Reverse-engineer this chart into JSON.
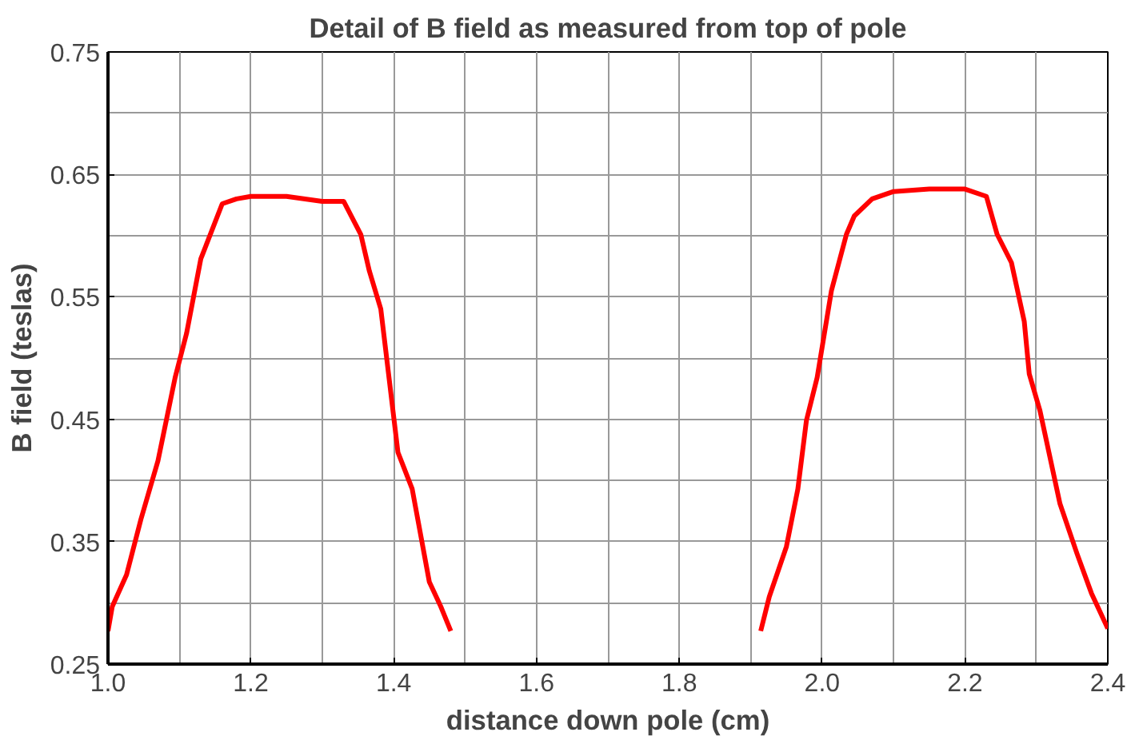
{
  "chart_data": {
    "type": "line",
    "title": "Detail of B field as measured from top of pole",
    "xlabel": "distance down pole (cm)",
    "ylabel": "B field (teslas)",
    "xlim": [
      1.0,
      2.4
    ],
    "xticks": [
      {
        "value": 1,
        "label": "1.0"
      },
      1.2,
      1.4,
      1.6,
      1.8,
      {
        "value": 2,
        "label": "2.0"
      },
      2.2,
      2.4
    ],
    "ylim": [
      0.25,
      0.75
    ],
    "yticks": [
      0.25,
      0.35,
      0.45,
      0.55,
      0.65,
      0.75
    ],
    "grid": true,
    "marker": "none",
    "line_style": "solid",
    "series": [
      {
        "color": "#ff0000",
        "x": [
          1.0,
          1.006,
          1.026,
          1.046,
          1.07,
          1.094,
          1.11,
          1.13,
          1.146,
          1.16,
          1.18,
          1.2,
          1.25,
          1.3,
          1.33,
          1.354,
          1.366,
          1.382,
          1.406,
          1.426,
          1.45,
          1.466,
          1.48
        ],
        "values": [
          0.277,
          0.297,
          0.323,
          0.368,
          0.416,
          0.484,
          0.52,
          0.581,
          0.605,
          0.626,
          0.63,
          0.632,
          0.632,
          0.628,
          0.628,
          0.601,
          0.571,
          0.54,
          0.423,
          0.393,
          0.317,
          0.297,
          0.277
        ]
      },
      {
        "color": "#ff0000",
        "x": [
          1.914,
          1.926,
          1.95,
          1.966,
          1.978,
          1.993,
          2.013,
          2.034,
          2.045,
          2.07,
          2.1,
          2.15,
          2.2,
          2.23,
          2.245,
          2.265,
          2.283,
          2.29,
          2.305,
          2.333,
          2.357,
          2.377,
          2.4
        ],
        "values": [
          0.277,
          0.305,
          0.346,
          0.393,
          0.449,
          0.484,
          0.555,
          0.601,
          0.616,
          0.63,
          0.636,
          0.638,
          0.638,
          0.632,
          0.601,
          0.578,
          0.53,
          0.487,
          0.457,
          0.381,
          0.34,
          0.308,
          0.279
        ]
      }
    ]
  }
}
